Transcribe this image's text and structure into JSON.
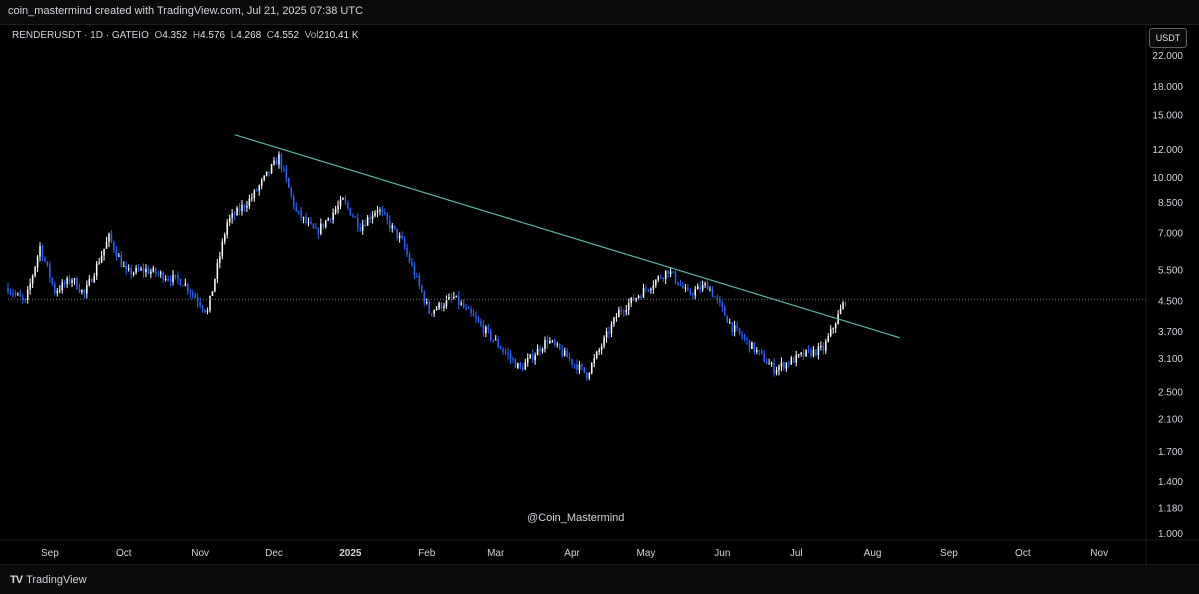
{
  "header": {
    "text": "coin_mastermind created with TradingView.com, Jul 21, 2025 07:38 UTC"
  },
  "symbol": {
    "name": "RENDERUSDT · 1D · GATEIO",
    "o_label": "O",
    "o": "4.352",
    "h_label": "H",
    "h": "4.576",
    "l_label": "L",
    "l": "4.268",
    "c_label": "C",
    "c": "4.552",
    "vol_label": "Vol",
    "vol": "210.41 K"
  },
  "currency_button": "USDT",
  "watermark": "@Coin_Mastermind",
  "footer": {
    "logo_mark": "TV",
    "brand": "TradingView"
  },
  "colors": {
    "up": "#ffffff",
    "down": "#2962ff",
    "trendline": "#5fb3a8",
    "price_line": "#787b86",
    "background": "#000000"
  },
  "chart_data": {
    "type": "candlestick",
    "y_scale": "log",
    "ylim": [
      0.96,
      27
    ],
    "y_ticks": [
      22,
      18,
      15,
      12,
      10,
      8.5,
      7,
      5.5,
      4.5,
      3.7,
      3.1,
      2.5,
      2.1,
      1.7,
      1.4,
      1.18,
      1.0
    ],
    "y_tick_labels": [
      "22.000",
      "18.000",
      "15.000",
      "12.000",
      "10.000",
      "8.500",
      "7.000",
      "5.500",
      "4.500",
      "3.700",
      "3.100",
      "2.500",
      "2.100",
      "1.700",
      "1.400",
      "1.180",
      "1.000"
    ],
    "x_range": [
      "2024-08-15",
      "2025-11-20"
    ],
    "x_ticks": [
      {
        "date": "2024-09-01",
        "label": "Sep"
      },
      {
        "date": "2024-10-01",
        "label": "Oct"
      },
      {
        "date": "2024-11-01",
        "label": "Nov"
      },
      {
        "date": "2024-12-01",
        "label": "Dec"
      },
      {
        "date": "2025-01-01",
        "label": "2025"
      },
      {
        "date": "2025-02-01",
        "label": "Feb"
      },
      {
        "date": "2025-03-01",
        "label": "Mar"
      },
      {
        "date": "2025-04-01",
        "label": "Apr"
      },
      {
        "date": "2025-05-01",
        "label": "May"
      },
      {
        "date": "2025-06-01",
        "label": "Jun"
      },
      {
        "date": "2025-07-01",
        "label": "Jul"
      },
      {
        "date": "2025-08-01",
        "label": "Aug"
      },
      {
        "date": "2025-09-01",
        "label": "Sep"
      },
      {
        "date": "2025-10-01",
        "label": "Oct"
      },
      {
        "date": "2025-11-01",
        "label": "Nov"
      }
    ],
    "current_price": 4.552,
    "trendline": [
      {
        "date": "2024-11-15",
        "value": 13.2
      },
      {
        "date": "2025-08-12",
        "value": 3.55
      }
    ],
    "price_path": [
      {
        "date": "2024-08-15",
        "value": 4.9
      },
      {
        "date": "2024-08-22",
        "value": 4.45
      },
      {
        "date": "2024-08-28",
        "value": 6.4
      },
      {
        "date": "2024-09-03",
        "value": 4.8
      },
      {
        "date": "2024-09-10",
        "value": 5.2
      },
      {
        "date": "2024-09-15",
        "value": 4.7
      },
      {
        "date": "2024-09-25",
        "value": 6.8
      },
      {
        "date": "2024-10-02",
        "value": 5.4
      },
      {
        "date": "2024-10-10",
        "value": 5.5
      },
      {
        "date": "2024-10-25",
        "value": 5.1
      },
      {
        "date": "2024-11-04",
        "value": 4.2
      },
      {
        "date": "2024-11-12",
        "value": 7.5
      },
      {
        "date": "2024-11-22",
        "value": 8.8
      },
      {
        "date": "2024-12-03",
        "value": 11.4
      },
      {
        "date": "2024-12-10",
        "value": 8.0
      },
      {
        "date": "2024-12-18",
        "value": 7.0
      },
      {
        "date": "2024-12-29",
        "value": 8.6
      },
      {
        "date": "2025-01-05",
        "value": 7.3
      },
      {
        "date": "2025-01-12",
        "value": 8.2
      },
      {
        "date": "2025-01-22",
        "value": 6.6
      },
      {
        "date": "2025-02-02",
        "value": 4.2
      },
      {
        "date": "2025-02-12",
        "value": 4.6
      },
      {
        "date": "2025-02-22",
        "value": 3.9
      },
      {
        "date": "2025-03-11",
        "value": 2.9
      },
      {
        "date": "2025-03-22",
        "value": 3.5
      },
      {
        "date": "2025-04-07",
        "value": 2.8
      },
      {
        "date": "2025-04-20",
        "value": 4.2
      },
      {
        "date": "2025-05-10",
        "value": 5.5
      },
      {
        "date": "2025-05-18",
        "value": 4.7
      },
      {
        "date": "2025-05-26",
        "value": 5.0
      },
      {
        "date": "2025-06-05",
        "value": 3.8
      },
      {
        "date": "2025-06-22",
        "value": 2.9
      },
      {
        "date": "2025-07-05",
        "value": 3.2
      },
      {
        "date": "2025-07-12",
        "value": 3.3
      },
      {
        "date": "2025-07-21",
        "value": 4.55
      }
    ]
  }
}
